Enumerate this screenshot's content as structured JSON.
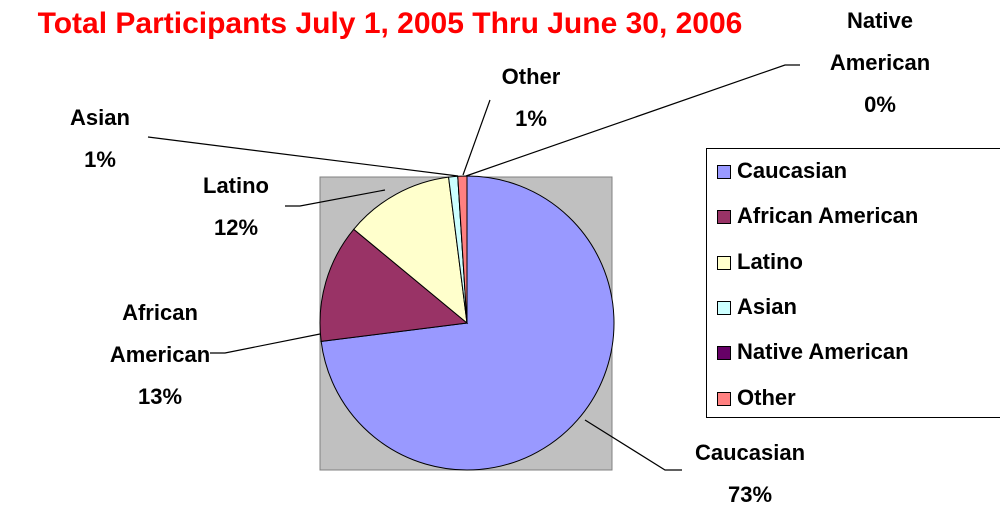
{
  "chart_data": {
    "type": "pie",
    "title": "Total Participants July 1, 2005 Thru June 30, 2006",
    "categories": [
      "Caucasian",
      "African American",
      "Latino",
      "Asian",
      "Native American",
      "Other"
    ],
    "values": [
      73,
      13,
      12,
      1,
      0,
      1
    ],
    "value_labels": [
      "73%",
      "13%",
      "12%",
      "1%",
      "0%",
      "1%"
    ],
    "colors": [
      "#9999ff",
      "#993366",
      "#ffffcc",
      "#ccffff",
      "#660066",
      "#ff8080"
    ],
    "legend": "right"
  }
}
